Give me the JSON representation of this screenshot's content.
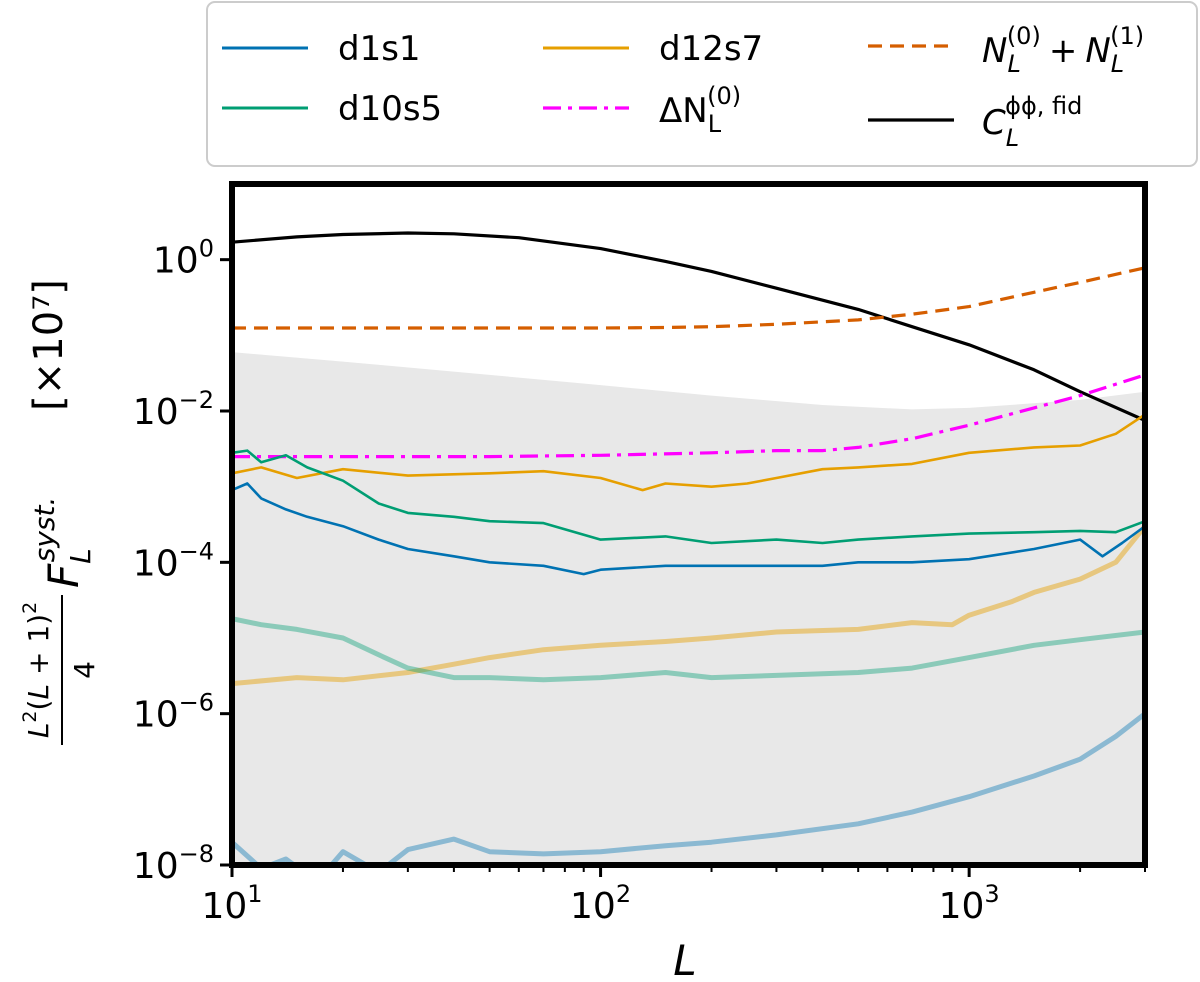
{
  "chart_data": {
    "type": "line",
    "xscale": "log",
    "yscale": "log",
    "xlim": [
      10,
      3000
    ],
    "ylim": [
      1e-08,
      10
    ],
    "xlabel": "L",
    "ylabel": "L²(L+1)²/4 F_L^syst.",
    "y_multiplier": "[×10⁷]",
    "x_ticks": [
      {
        "value": 10,
        "base": "10",
        "exp": "1"
      },
      {
        "value": 100,
        "base": "10",
        "exp": "2"
      },
      {
        "value": 1000,
        "base": "10",
        "exp": "3"
      }
    ],
    "y_ticks": [
      {
        "value": 1e-08,
        "base": "10",
        "exp": "−8"
      },
      {
        "value": 1e-06,
        "base": "10",
        "exp": "−6"
      },
      {
        "value": 0.0001,
        "base": "10",
        "exp": "−4"
      },
      {
        "value": 0.01,
        "base": "10",
        "exp": "−2"
      },
      {
        "value": 1,
        "base": "10",
        "exp": "0"
      }
    ],
    "shaded_region": {
      "name": "gray band",
      "color": "#e8e8e8",
      "x": [
        10,
        20,
        50,
        100,
        200,
        400,
        700,
        1000,
        2000,
        3000
      ],
      "upper": [
        0.06,
        0.045,
        0.03,
        0.022,
        0.016,
        0.012,
        0.0105,
        0.011,
        0.014,
        0.018
      ]
    },
    "series": [
      {
        "name": "C_L^φφ, fid",
        "color": "#000000",
        "dash": "solid",
        "width": 3.2,
        "alpha": 1,
        "x": [
          10,
          15,
          20,
          30,
          40,
          60,
          100,
          150,
          200,
          300,
          500,
          700,
          1000,
          1500,
          2000,
          3000
        ],
        "y": [
          1.7,
          2.0,
          2.15,
          2.25,
          2.2,
          1.95,
          1.4,
          0.95,
          0.7,
          0.42,
          0.22,
          0.13,
          0.075,
          0.035,
          0.018,
          0.0075
        ]
      },
      {
        "name": "N_L^(0) + N_L^(1)",
        "color": "#d55e00",
        "dash": "14,8",
        "width": 3.2,
        "alpha": 1,
        "x": [
          10,
          20,
          50,
          100,
          150,
          200,
          300,
          500,
          700,
          1000,
          1500,
          2000,
          3000
        ],
        "y": [
          0.125,
          0.125,
          0.125,
          0.125,
          0.127,
          0.13,
          0.14,
          0.16,
          0.19,
          0.24,
          0.37,
          0.5,
          0.78
        ]
      },
      {
        "name": "ΔN_L^(0)",
        "color": "#ff00ff",
        "dash": "18,7,4,7",
        "width": 3.2,
        "alpha": 1,
        "x": [
          10,
          20,
          50,
          100,
          200,
          300,
          400,
          500,
          700,
          1000,
          1500,
          2000,
          3000
        ],
        "y": [
          0.0025,
          0.0025,
          0.0025,
          0.0026,
          0.0028,
          0.003,
          0.003,
          0.0033,
          0.0043,
          0.0065,
          0.011,
          0.016,
          0.03
        ]
      },
      {
        "name": "d12s7",
        "color": "#e69f00",
        "dash": "solid",
        "width": 2.6,
        "alpha": 1,
        "x": [
          10,
          12,
          15,
          20,
          30,
          50,
          70,
          100,
          130,
          150,
          200,
          250,
          300,
          400,
          500,
          700,
          1000,
          1500,
          2000,
          2500,
          3000
        ],
        "y": [
          0.0015,
          0.0018,
          0.0013,
          0.0017,
          0.0014,
          0.0015,
          0.0016,
          0.0013,
          0.0009,
          0.0011,
          0.001,
          0.0011,
          0.0013,
          0.0017,
          0.0018,
          0.002,
          0.0028,
          0.0033,
          0.0035,
          0.005,
          0.009
        ]
      },
      {
        "name": "d10s5",
        "color": "#009e73",
        "dash": "solid",
        "width": 2.6,
        "alpha": 1,
        "x": [
          10,
          11,
          12,
          14,
          16,
          20,
          25,
          30,
          40,
          50,
          70,
          100,
          150,
          200,
          300,
          400,
          500,
          700,
          1000,
          1500,
          2000,
          2500,
          3000
        ],
        "y": [
          0.0028,
          0.003,
          0.0021,
          0.0026,
          0.0018,
          0.0012,
          0.0006,
          0.00045,
          0.0004,
          0.00035,
          0.00033,
          0.0002,
          0.00022,
          0.00018,
          0.0002,
          0.00018,
          0.0002,
          0.00022,
          0.00024,
          0.00025,
          0.00026,
          0.00025,
          0.00035
        ]
      },
      {
        "name": "d1s1",
        "color": "#0072b2",
        "dash": "solid",
        "width": 2.6,
        "alpha": 1,
        "x": [
          10,
          11,
          12,
          14,
          16,
          20,
          25,
          30,
          40,
          50,
          70,
          90,
          100,
          150,
          200,
          300,
          400,
          500,
          700,
          1000,
          1500,
          2000,
          2300,
          2600,
          3000
        ],
        "y": [
          0.0009,
          0.0011,
          0.0007,
          0.0005,
          0.0004,
          0.0003,
          0.0002,
          0.00015,
          0.00012,
          0.0001,
          9e-05,
          7e-05,
          8e-05,
          9e-05,
          9e-05,
          9e-05,
          9e-05,
          0.0001,
          0.0001,
          0.00011,
          0.00015,
          0.0002,
          0.00012,
          0.00018,
          0.0003
        ]
      },
      {
        "name": "d12s7 (faint)",
        "color": "#e69f00",
        "dash": "solid",
        "width": 5,
        "alpha": 0.45,
        "x": [
          10,
          15,
          20,
          30,
          40,
          50,
          70,
          100,
          150,
          200,
          300,
          500,
          700,
          900,
          1000,
          1300,
          1500,
          2000,
          2500,
          3000
        ],
        "y": [
          2.5e-06,
          3e-06,
          2.8e-06,
          3.5e-06,
          4.5e-06,
          5.5e-06,
          7e-06,
          8e-06,
          9e-06,
          1e-05,
          1.2e-05,
          1.3e-05,
          1.6e-05,
          1.5e-05,
          2e-05,
          3e-05,
          4e-05,
          6e-05,
          0.0001,
          0.0003
        ]
      },
      {
        "name": "d10s5 (faint)",
        "color": "#009e73",
        "dash": "solid",
        "width": 5,
        "alpha": 0.4,
        "x": [
          10,
          12,
          15,
          20,
          25,
          30,
          40,
          50,
          70,
          100,
          150,
          200,
          300,
          500,
          700,
          1000,
          1500,
          2000,
          3000
        ],
        "y": [
          1.8e-05,
          1.5e-05,
          1.3e-05,
          1e-05,
          6e-06,
          4e-06,
          3e-06,
          3e-06,
          2.8e-06,
          3e-06,
          3.5e-06,
          3e-06,
          3.2e-06,
          3.5e-06,
          4e-06,
          5.5e-06,
          8e-06,
          9.5e-06,
          1.2e-05
        ]
      },
      {
        "name": "d1s1 (faint)",
        "color": "#0072b2",
        "dash": "solid",
        "width": 5,
        "alpha": 0.4,
        "x": [
          10,
          12,
          14,
          17,
          20,
          25,
          30,
          40,
          50,
          70,
          100,
          150,
          200,
          300,
          500,
          700,
          1000,
          1500,
          2000,
          2500,
          3000
        ],
        "y": [
          2e-08,
          9e-09,
          1.2e-08,
          6e-09,
          1.5e-08,
          8e-09,
          1.6e-08,
          2.2e-08,
          1.5e-08,
          1.4e-08,
          1.5e-08,
          1.8e-08,
          2e-08,
          2.5e-08,
          3.5e-08,
          5e-08,
          8e-08,
          1.5e-07,
          2.5e-07,
          5e-07,
          1e-06
        ]
      }
    ],
    "legend": {
      "position": "top",
      "entries": [
        {
          "label": "d1s1",
          "color": "#0072b2",
          "dash": "solid"
        },
        {
          "label": "d10s5",
          "color": "#009e73",
          "dash": "solid"
        },
        {
          "label": "d12s7",
          "color": "#e69f00",
          "dash": "solid"
        },
        {
          "label": "ΔN",
          "sub": "L",
          "sup": "(0)",
          "color": "#ff00ff",
          "dash": "18,7,4,7"
        },
        {
          "label": "N",
          "sub": "L",
          "sup": "(0)",
          "plus": "+",
          "label2": "N",
          "sub2": "L",
          "sup2": "(1)",
          "color": "#d55e00",
          "dash": "14,8"
        },
        {
          "label": "C",
          "sub": "L",
          "sup": "ϕϕ, fid",
          "color": "#000000",
          "dash": "solid"
        }
      ]
    }
  }
}
